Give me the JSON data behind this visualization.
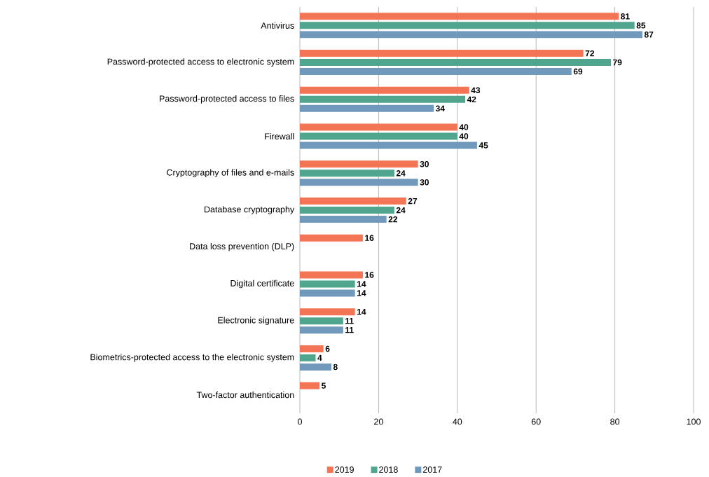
{
  "chart_data": {
    "type": "bar",
    "orientation": "horizontal",
    "categories": [
      "Antivirus",
      "Password-protected access to electronic system",
      "Password-protected access to files",
      "Firewall",
      "Cryptography of files and e-mails",
      "Database cryptography",
      "Data loss prevention (DLP)",
      "Digital certificate",
      "Electronic signature",
      "Biometrics-protected access to the electronic system",
      "Two-factor authentication"
    ],
    "series": [
      {
        "name": "2019",
        "color": "#f47555",
        "values": [
          81,
          72,
          43,
          40,
          30,
          27,
          16,
          16,
          14,
          6,
          5
        ]
      },
      {
        "name": "2018",
        "color": "#4fa58e",
        "values": [
          85,
          79,
          42,
          40,
          24,
          24,
          null,
          14,
          11,
          4,
          null
        ]
      },
      {
        "name": "2017",
        "color": "#7199bb",
        "values": [
          87,
          69,
          34,
          45,
          30,
          22,
          null,
          14,
          11,
          8,
          null
        ]
      }
    ],
    "xlim": [
      0,
      100
    ],
    "xticks": [
      0,
      20,
      40,
      60,
      80,
      100
    ],
    "grid": "x",
    "legend": "bottom",
    "data_labels": true
  }
}
